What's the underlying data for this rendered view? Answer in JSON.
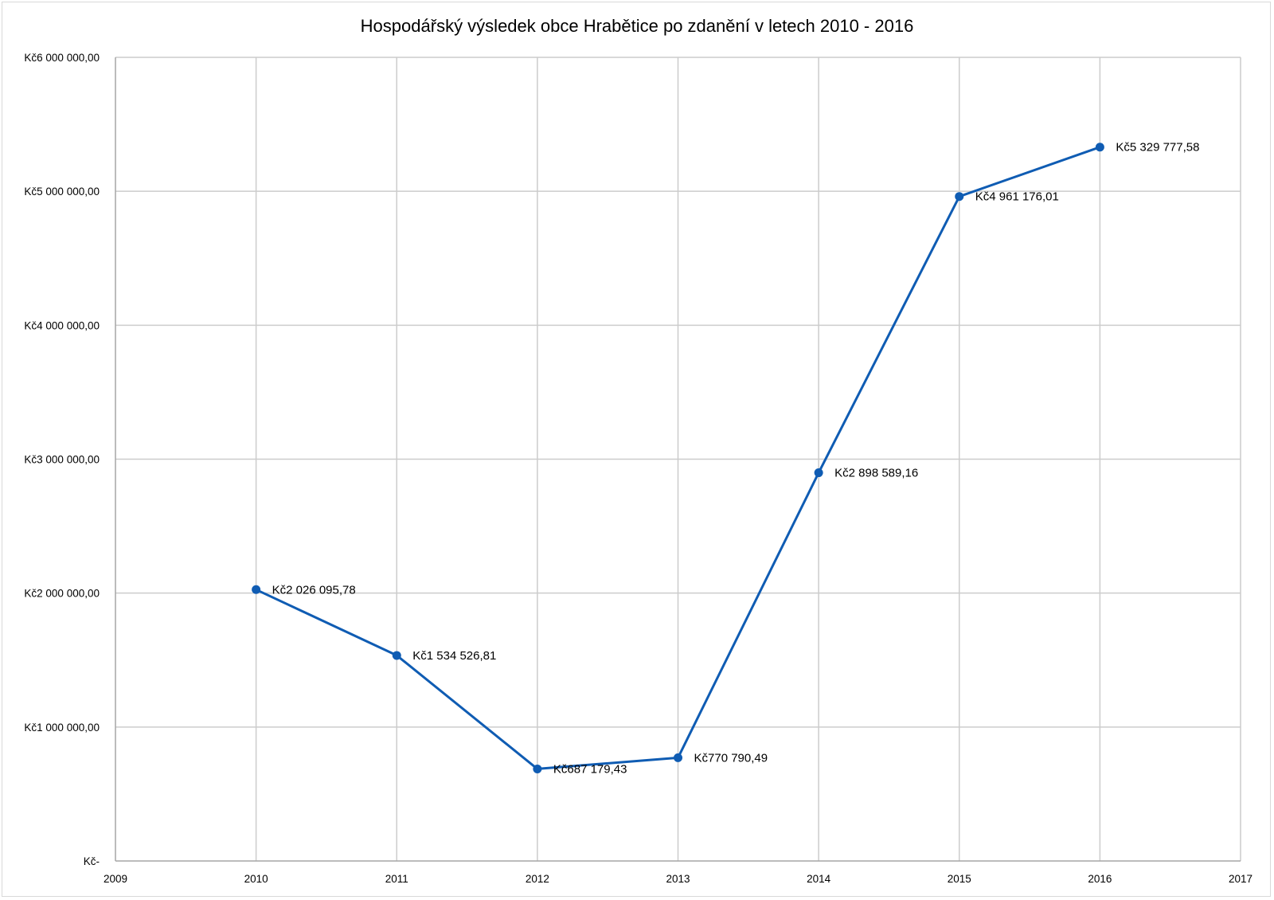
{
  "chart_data": {
    "type": "line",
    "title": "Hospodářský výsledek obce Hrabětice po zdanění v letech 2010 - 2016",
    "xlabel": "",
    "ylabel": "",
    "xlim": [
      2009,
      2017
    ],
    "ylim": [
      0,
      6000000
    ],
    "x_ticks": [
      "2009",
      "2010",
      "2011",
      "2012",
      "2013",
      "2014",
      "2015",
      "2016",
      "2017"
    ],
    "y_ticks": [
      {
        "value": 0,
        "label": "Kč-"
      },
      {
        "value": 1000000,
        "label": "Kč1 000 000,00"
      },
      {
        "value": 2000000,
        "label": "Kč2 000 000,00"
      },
      {
        "value": 3000000,
        "label": "Kč3 000 000,00"
      },
      {
        "value": 4000000,
        "label": "Kč4 000 000,00"
      },
      {
        "value": 5000000,
        "label": "Kč5 000 000,00"
      },
      {
        "value": 6000000,
        "label": "Kč6 000 000,00"
      }
    ],
    "grid": true,
    "legend": "none",
    "series": [
      {
        "color": "#0f5cb3",
        "points": [
          {
            "x": 2010,
            "y": 2026095.78,
            "label": "Kč2 026 095,78"
          },
          {
            "x": 2011,
            "y": 1534526.81,
            "label": "Kč1 534 526,81"
          },
          {
            "x": 2012,
            "y": 687179.43,
            "label": "Kč687 179,43"
          },
          {
            "x": 2013,
            "y": 770790.49,
            "label": "Kč770 790,49"
          },
          {
            "x": 2014,
            "y": 2898589.16,
            "label": "Kč2 898 589,16"
          },
          {
            "x": 2015,
            "y": 4961176.01,
            "label": "Kč4 961 176,01"
          },
          {
            "x": 2016,
            "y": 5329777.58,
            "label": "Kč5 329 777,58"
          }
        ]
      }
    ]
  }
}
